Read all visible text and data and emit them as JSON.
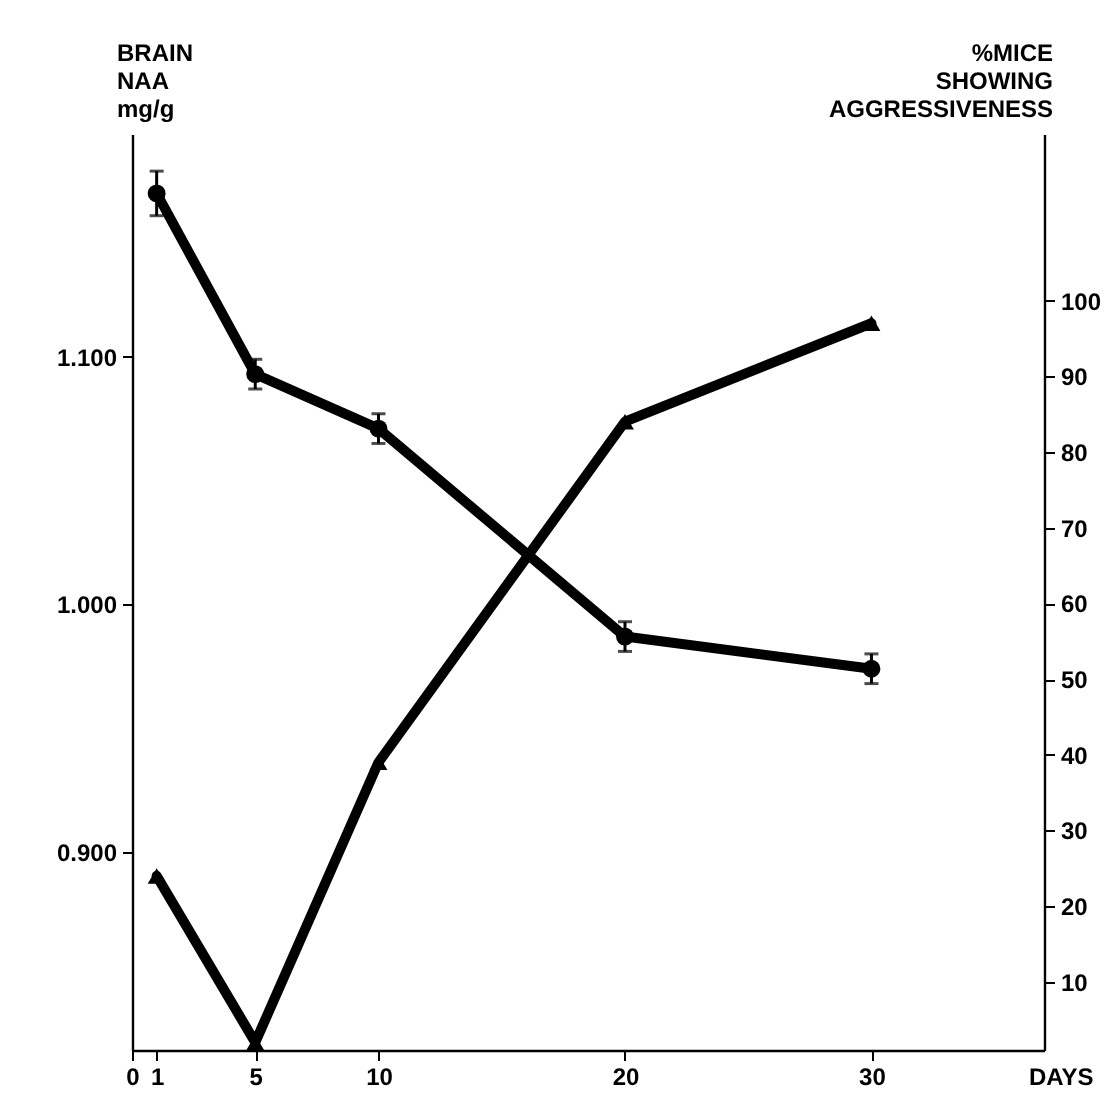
{
  "chart_data": {
    "type": "line",
    "xlabel": "DAYS",
    "ylabel": "BRAIN\nNAA\nmg/g",
    "y2label": "%MICE\nSHOWING\nAGGRESSIVENESS",
    "x": [
      1,
      5,
      10,
      20,
      30
    ],
    "xlim": [
      0,
      37
    ],
    "xticks": [
      0,
      1,
      5,
      10,
      20,
      30
    ],
    "ylim": [
      0.82,
      1.19
    ],
    "yticks": [
      {
        "value": 0.9,
        "label": "0.900"
      },
      {
        "value": 1.0,
        "label": "1.000"
      },
      {
        "value": 1.1,
        "label": "1.100"
      }
    ],
    "y2lim": [
      1,
      122
    ],
    "y2ticks": [
      10,
      20,
      30,
      40,
      50,
      60,
      70,
      80,
      90,
      100
    ],
    "grid": false,
    "line_style": "solid",
    "series": [
      {
        "color": "#000000",
        "marker": "circle",
        "values": [
          1.166,
          1.093,
          1.071,
          0.987,
          0.974
        ],
        "errors": [
          0.009,
          0.006,
          0.006,
          0.006,
          0.006
        ]
      },
      {
        "color": "#000000",
        "marker": "triangle",
        "axis": "y2",
        "values": [
          24,
          2,
          39,
          84,
          97
        ]
      }
    ]
  }
}
